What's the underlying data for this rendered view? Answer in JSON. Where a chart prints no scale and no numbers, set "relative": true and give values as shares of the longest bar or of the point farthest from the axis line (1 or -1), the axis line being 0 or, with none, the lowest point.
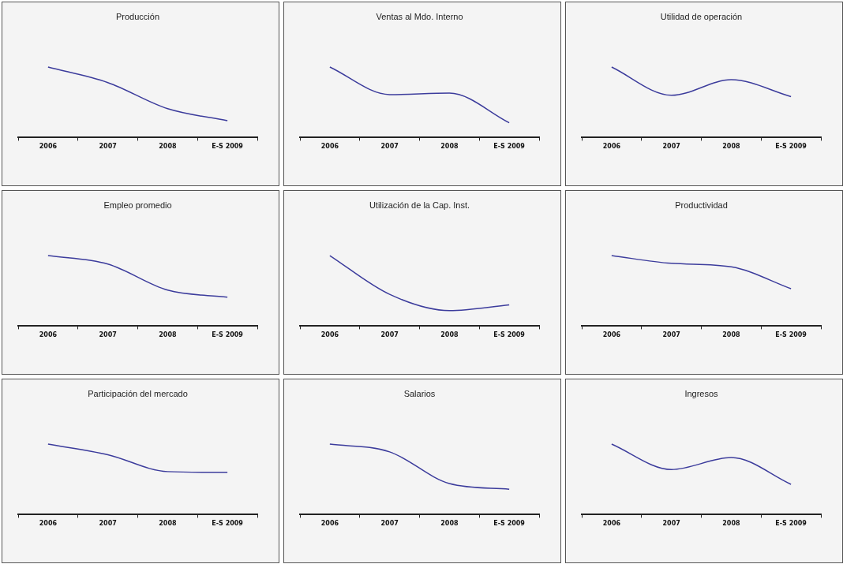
{
  "chart_data": [
    {
      "type": "line",
      "title": "Producción",
      "categories": [
        "2006",
        "2007",
        "2008",
        "E-S 2009"
      ],
      "values": [
        1,
        0.78,
        0.41,
        0.24
      ],
      "color": "#3c3c9c",
      "relative": true,
      "tick_labels": "x",
      "marker": "none"
    },
    {
      "type": "line",
      "title": "Ventas al Mdo. Interno",
      "categories": [
        "2006",
        "2007",
        "2008",
        "E-S 2009"
      ],
      "values": [
        1,
        0.61,
        0.63,
        0.21
      ],
      "color": "#3c3c9c",
      "relative": true,
      "tick_labels": "x",
      "marker": "none"
    },
    {
      "type": "line",
      "title": "Utilidad de operación",
      "categories": [
        "2006",
        "2007",
        "2008",
        "E-S 2009"
      ],
      "values": [
        1,
        0.6,
        0.82,
        0.58
      ],
      "color": "#3c3c9c",
      "relative": true,
      "tick_labels": "x",
      "marker": "none"
    },
    {
      "type": "line",
      "title": "Empleo promedio",
      "categories": [
        "2006",
        "2007",
        "2008",
        "E-S 2009"
      ],
      "values": [
        1,
        0.88,
        0.51,
        0.41
      ],
      "color": "#3c3c9c",
      "relative": true,
      "tick_labels": "x",
      "marker": "none"
    },
    {
      "type": "line",
      "title": "Utilización de la Cap. Inst.",
      "categories": [
        "2006",
        "2007",
        "2008",
        "E-S 2009"
      ],
      "values": [
        1,
        0.45,
        0.22,
        0.3
      ],
      "color": "#3c3c9c",
      "relative": true,
      "tick_labels": "x",
      "marker": "none"
    },
    {
      "type": "line",
      "title": "Productividad",
      "categories": [
        "2006",
        "2007",
        "2008",
        "E-S 2009"
      ],
      "values": [
        1,
        0.89,
        0.84,
        0.53
      ],
      "color": "#3c3c9c",
      "relative": true,
      "tick_labels": "x",
      "marker": "none"
    },
    {
      "type": "line",
      "title": "Participación del mercado",
      "categories": [
        "2006",
        "2007",
        "2008",
        "E-S 2009"
      ],
      "values": [
        1,
        0.85,
        0.61,
        0.6
      ],
      "color": "#3c3c9c",
      "relative": true,
      "tick_labels": "x",
      "marker": "none"
    },
    {
      "type": "line",
      "title": "Salarios",
      "categories": [
        "2006",
        "2007",
        "2008",
        "E-S 2009"
      ],
      "values": [
        1,
        0.89,
        0.44,
        0.36
      ],
      "color": "#3c3c9c",
      "relative": true,
      "tick_labels": "x",
      "marker": "none"
    },
    {
      "type": "line",
      "title": "Ingresos",
      "categories": [
        "2006",
        "2007",
        "2008",
        "E-S 2009"
      ],
      "values": [
        1,
        0.64,
        0.81,
        0.43
      ],
      "color": "#3c3c9c",
      "relative": true,
      "tick_labels": "x",
      "marker": "none"
    }
  ]
}
